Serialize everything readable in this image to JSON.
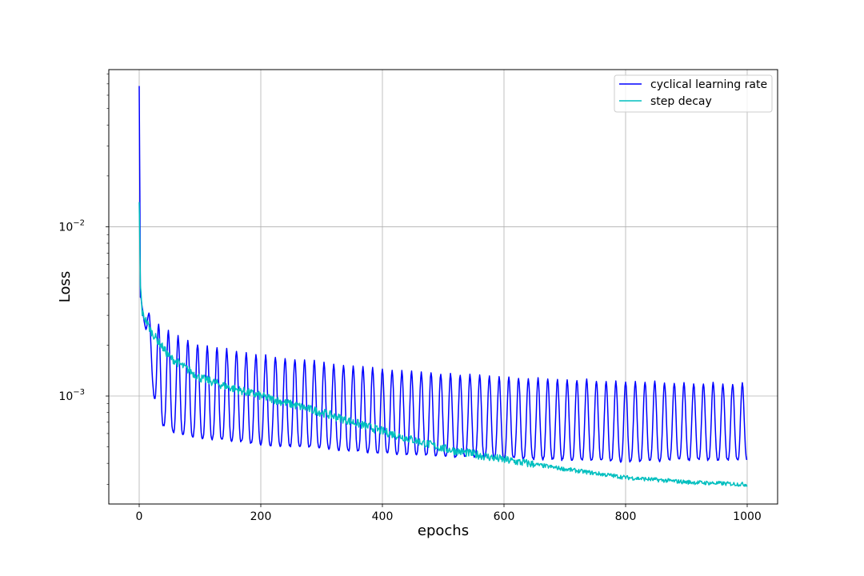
{
  "chart_data": {
    "type": "line",
    "xlabel": "epochs",
    "ylabel": "Loss",
    "xlim": [
      -50,
      1050
    ],
    "ylim": [
      0.00023,
      0.085
    ],
    "yscale": "log",
    "grid": true,
    "legend_position": "top-right",
    "x_ticks": [
      0,
      200,
      400,
      600,
      800,
      1000
    ],
    "x_tick_labels": [
      "0",
      "200",
      "400",
      "600",
      "800",
      "1000"
    ],
    "y_ticks": [
      {
        "value": 0.001,
        "base": "10",
        "exp": "−3"
      },
      {
        "value": 0.01,
        "base": "10",
        "exp": "−2"
      }
    ],
    "series": [
      {
        "name": "cyclical learning rate",
        "color": "#0000ff",
        "num_epochs": 1000,
        "cycle_period_epochs": 16,
        "cycle_troughs_early": [
          [
            15,
            0.00085
          ],
          [
            30,
            0.0007
          ],
          [
            45,
            0.00065
          ],
          [
            60,
            0.0006
          ]
        ],
        "envelope_points": [
          {
            "x": 0,
            "max": 0.068,
            "min": 0.068
          },
          {
            "x": 2,
            "max": 0.0039,
            "min": 0.0039
          },
          {
            "x": 10,
            "max": 0.0033,
            "min": 0.0025
          },
          {
            "x": 30,
            "max": 0.0027,
            "min": 0.0007
          },
          {
            "x": 60,
            "max": 0.0023,
            "min": 0.0006
          },
          {
            "x": 100,
            "max": 0.002,
            "min": 0.00057
          },
          {
            "x": 200,
            "max": 0.00175,
            "min": 0.00052
          },
          {
            "x": 300,
            "max": 0.00158,
            "min": 0.00049
          },
          {
            "x": 400,
            "max": 0.00143,
            "min": 0.00046
          },
          {
            "x": 500,
            "max": 0.00135,
            "min": 0.00044
          },
          {
            "x": 600,
            "max": 0.0013,
            "min": 0.00043
          },
          {
            "x": 700,
            "max": 0.00125,
            "min": 0.00042
          },
          {
            "x": 800,
            "max": 0.00123,
            "min": 0.00041
          },
          {
            "x": 900,
            "max": 0.0012,
            "min": 0.00042
          },
          {
            "x": 1000,
            "max": 0.00118,
            "min": 0.00042
          }
        ]
      },
      {
        "name": "step decay",
        "color": "#00bfbf",
        "num_epochs": 1000,
        "trend_points": [
          {
            "x": 0,
            "y": 0.014
          },
          {
            "x": 2,
            "y": 0.0045
          },
          {
            "x": 5,
            "y": 0.0031
          },
          {
            "x": 20,
            "y": 0.0024
          },
          {
            "x": 50,
            "y": 0.0017
          },
          {
            "x": 100,
            "y": 0.00128
          },
          {
            "x": 150,
            "y": 0.00112
          },
          {
            "x": 200,
            "y": 0.001
          },
          {
            "x": 300,
            "y": 0.0008
          },
          {
            "x": 400,
            "y": 0.00062
          },
          {
            "x": 500,
            "y": 0.00049
          },
          {
            "x": 600,
            "y": 0.00042
          },
          {
            "x": 700,
            "y": 0.00037
          },
          {
            "x": 800,
            "y": 0.00033
          },
          {
            "x": 900,
            "y": 0.00031
          },
          {
            "x": 1000,
            "y": 0.0003
          }
        ]
      }
    ]
  }
}
